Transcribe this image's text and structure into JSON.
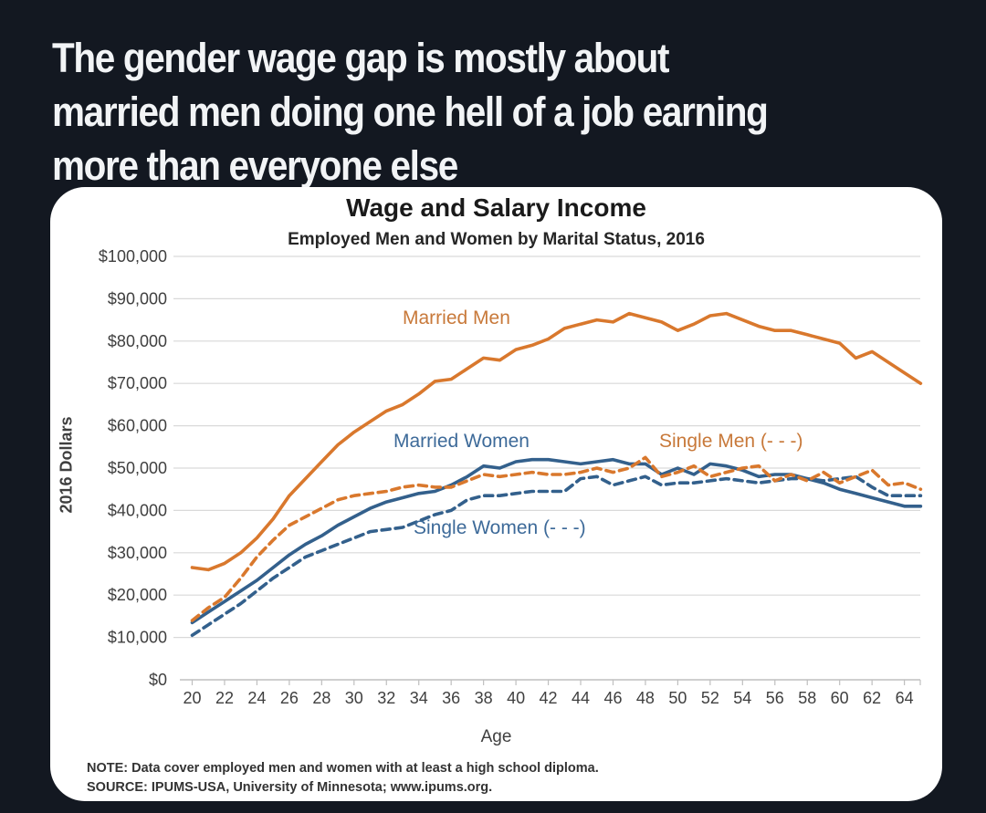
{
  "post": {
    "headline_lines": [
      "The gender wage gap is mostly about",
      "married men doing one hell of a job earning",
      "more than everyone else"
    ]
  },
  "chart": {
    "title": "Wage and Salary Income",
    "subtitle": "Employed Men and Women by Marital Status, 2016",
    "y_axis_title": "2016 Dollars",
    "x_axis_title": "Age",
    "note": "NOTE: Data cover employed men and women with at least a high school diploma.",
    "source": "SOURCE: IPUMS-USA, University of Minnesota; www.ipums.org.",
    "labels": {
      "married_men": "Married Men",
      "married_women": "Married Women",
      "single_men": "Single Men (- - -)",
      "single_women": "Single Women (- - -)"
    },
    "colors": {
      "orange_line": "#D9782D",
      "blue_line": "#33608C",
      "gridline": "#D9D9D9",
      "axis": "#BFBFBF",
      "tick_text": "#3F3F3F",
      "page_bg": "#131821",
      "card_bg": "#FFFFFF",
      "headline_text": "#F2F4F6"
    }
  },
  "chart_data": {
    "type": "line",
    "title": "Wage and Salary Income",
    "subtitle": "Employed Men and Women by Marital Status, 2016",
    "xlabel": "Age",
    "ylabel": "2016 Dollars",
    "values_unit": "thousands of 2016 dollars",
    "ylim": [
      0,
      100
    ],
    "grid": "horizontal",
    "legend_position": "inline-labels",
    "x": [
      20,
      21,
      22,
      23,
      24,
      25,
      26,
      27,
      28,
      29,
      30,
      31,
      32,
      33,
      34,
      35,
      36,
      37,
      38,
      39,
      40,
      41,
      42,
      43,
      44,
      45,
      46,
      47,
      48,
      49,
      50,
      51,
      52,
      53,
      54,
      55,
      56,
      57,
      58,
      59,
      60,
      61,
      62,
      63,
      64,
      65
    ],
    "x_tick_labels": [
      "20",
      "22",
      "24",
      "26",
      "28",
      "30",
      "32",
      "34",
      "36",
      "38",
      "40",
      "42",
      "44",
      "46",
      "48",
      "50",
      "52",
      "54",
      "56",
      "58",
      "60",
      "62",
      "64"
    ],
    "y_tick_labels": [
      "$0",
      "$10,000",
      "$20,000",
      "$30,000",
      "$40,000",
      "$50,000",
      "$60,000",
      "$70,000",
      "$80,000",
      "$90,000",
      "$100,000"
    ],
    "series": [
      {
        "name": "Single Women",
        "style": "dashed",
        "color": "#33608C",
        "values": [
          10.5,
          13,
          15.5,
          18,
          21,
          24,
          26.5,
          29,
          30.5,
          32,
          33.5,
          35,
          35.5,
          36,
          37.5,
          39,
          40,
          42.5,
          43.5,
          43.5,
          44,
          44.5,
          44.5,
          44.5,
          47.5,
          48,
          46,
          47,
          48,
          46,
          46.5,
          46.5,
          47,
          47.5,
          47,
          46.5,
          47,
          47.5,
          47.5,
          47,
          47.5,
          48,
          45.5,
          43.5,
          43.5,
          43.5
        ]
      },
      {
        "name": "Married Women",
        "style": "solid",
        "color": "#33608C",
        "values": [
          13.5,
          16,
          18.5,
          21,
          23.5,
          26.5,
          29.5,
          32,
          34,
          36.5,
          38.5,
          40.5,
          42,
          43,
          44,
          44.5,
          46,
          48,
          50.5,
          50,
          51.5,
          52,
          52,
          51.5,
          51,
          51.5,
          52,
          51,
          51,
          48.5,
          50,
          48.5,
          51,
          50.5,
          49.5,
          48,
          48.5,
          48.5,
          47.5,
          46.5,
          45,
          44,
          43,
          42,
          41,
          41
        ]
      },
      {
        "name": "Single Men",
        "style": "dashed",
        "color": "#D9782D",
        "values": [
          14,
          17,
          19.5,
          24,
          29,
          33,
          36.5,
          38.5,
          40.5,
          42.5,
          43.5,
          44,
          44.5,
          45.5,
          46,
          45.5,
          45.5,
          47,
          48.5,
          48,
          48.5,
          49,
          48.5,
          48.5,
          49,
          50,
          49,
          50,
          52.5,
          48,
          49,
          50.5,
          48,
          49,
          50,
          50.5,
          47,
          48.5,
          47,
          49,
          46.5,
          48,
          49.5,
          46,
          46.5,
          45
        ]
      },
      {
        "name": "Married Men",
        "style": "solid",
        "color": "#D9782D",
        "values": [
          26.5,
          26,
          27.5,
          30,
          33.5,
          38,
          43.5,
          47.5,
          51.5,
          55.5,
          58.5,
          61,
          63.5,
          65,
          67.5,
          70.5,
          71,
          73.5,
          76,
          75.5,
          78,
          79,
          80.5,
          83,
          84,
          85,
          84.5,
          86.5,
          85.5,
          84.5,
          82.5,
          84,
          86,
          86.5,
          85,
          83.5,
          82.5,
          82.5,
          81.5,
          80.5,
          79.5,
          76,
          77.5,
          75,
          72.5,
          70
        ]
      }
    ]
  }
}
